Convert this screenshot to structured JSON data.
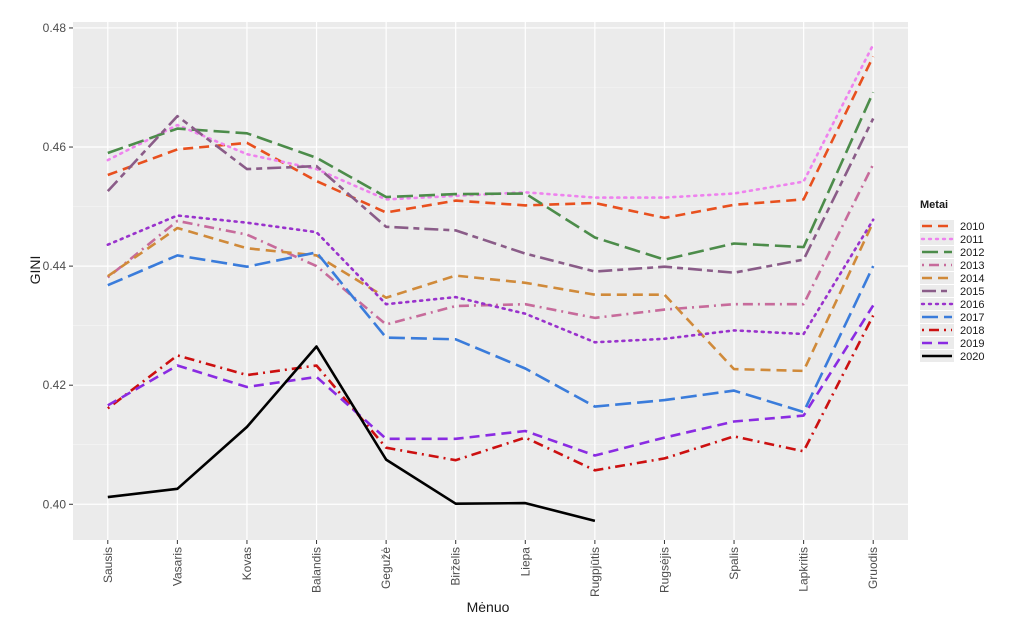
{
  "chart_data": {
    "type": "line",
    "xlabel": "Mėnuo",
    "ylabel": "GINI",
    "ylim": [
      0.394,
      0.481
    ],
    "yticks": [
      0.4,
      0.42,
      0.44,
      0.46,
      0.48
    ],
    "ytick_labels": [
      "0.40",
      "0.42",
      "0.44",
      "0.46",
      "0.48"
    ],
    "grid": true,
    "legend_title": "Metai",
    "legend_position": "right",
    "categories": [
      "Sausis",
      "Vasaris",
      "Kovas",
      "Balandis",
      "Gegužė",
      "Birželis",
      "Liepa",
      "Rugpjūtis",
      "Rugsėjis",
      "Spalis",
      "Lapkritis",
      "Gruodis"
    ],
    "series": [
      {
        "name": "2010",
        "color": "#e8501e",
        "dash": "dash",
        "values": [
          0.4553,
          0.4596,
          0.4607,
          0.4543,
          0.449,
          0.451,
          0.4502,
          0.4506,
          0.4481,
          0.4503,
          0.4512,
          0.4752
        ]
      },
      {
        "name": "2011",
        "color": "#ee82ee",
        "dash": "dot",
        "values": [
          0.4578,
          0.4637,
          0.4588,
          0.4563,
          0.4512,
          0.4518,
          0.4524,
          0.4515,
          0.4515,
          0.4522,
          0.4542,
          0.4772
        ]
      },
      {
        "name": "2012",
        "color": "#4c8c4a",
        "dash": "longdash",
        "values": [
          0.459,
          0.4631,
          0.4623,
          0.4582,
          0.4516,
          0.4521,
          0.4522,
          0.4448,
          0.4411,
          0.4438,
          0.4432,
          0.4692
        ]
      },
      {
        "name": "2013",
        "color": "#c76b9b",
        "dash": "dotdash",
        "values": [
          0.4381,
          0.4476,
          0.4453,
          0.44,
          0.4302,
          0.4333,
          0.4336,
          0.4313,
          0.4327,
          0.4336,
          0.4336,
          0.4571
        ]
      },
      {
        "name": "2014",
        "color": "#d08a3a",
        "dash": "dash",
        "values": [
          0.4383,
          0.4464,
          0.443,
          0.4418,
          0.4347,
          0.4384,
          0.4372,
          0.4352,
          0.4352,
          0.4227,
          0.4224,
          0.4474
        ]
      },
      {
        "name": "2015",
        "color": "#8a5c88",
        "dash": "twodash",
        "values": [
          0.4526,
          0.4652,
          0.4563,
          0.4568,
          0.4466,
          0.446,
          0.4421,
          0.4391,
          0.4399,
          0.4389,
          0.4411,
          0.4648
        ]
      },
      {
        "name": "2016",
        "color": "#9932cc",
        "dash": "dot",
        "values": [
          0.4436,
          0.4485,
          0.4473,
          0.4457,
          0.4336,
          0.4348,
          0.432,
          0.4272,
          0.4278,
          0.4292,
          0.4286,
          0.4478
        ]
      },
      {
        "name": "2017",
        "color": "#3a7cdb",
        "dash": "longdash",
        "values": [
          0.4368,
          0.4418,
          0.4399,
          0.4423,
          0.428,
          0.4277,
          0.4228,
          0.4164,
          0.4175,
          0.4191,
          0.4155,
          0.44
        ]
      },
      {
        "name": "2018",
        "color": "#cc1010",
        "dash": "dotdash",
        "values": [
          0.4161,
          0.425,
          0.4217,
          0.4233,
          0.4095,
          0.4074,
          0.4112,
          0.4057,
          0.4077,
          0.4114,
          0.4089,
          0.4317
        ]
      },
      {
        "name": "2019",
        "color": "#8a2be2",
        "dash": "dash",
        "values": [
          0.4166,
          0.4233,
          0.4197,
          0.4214,
          0.411,
          0.411,
          0.4123,
          0.4082,
          0.4112,
          0.4139,
          0.4149,
          0.4334
        ]
      },
      {
        "name": "2020",
        "color": "#000000",
        "dash": "solid",
        "values": [
          0.4012,
          0.4026,
          0.413,
          0.4265,
          0.4075,
          0.4001,
          0.4002,
          0.3972,
          null,
          null,
          null,
          null
        ]
      }
    ]
  }
}
